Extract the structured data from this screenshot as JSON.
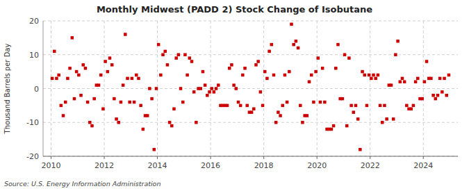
{
  "chart_data": {
    "type": "scatter",
    "title": "Monthly Midwest (PADD 2) Stock Change of Isobutane",
    "ylabel": "Thousand Barrels per Day",
    "annotation": "Source: U.S. Energy Information Administration",
    "color": "#cc0000",
    "marker": "square",
    "grid": true,
    "xlim": [
      2009.7,
      2025.3
    ],
    "xticks": [
      2010,
      2012,
      2014,
      2016,
      2018,
      2020,
      2022,
      2024
    ],
    "ylim": [
      -20,
      20
    ],
    "yticks": [
      -20,
      -10,
      0,
      10,
      20
    ],
    "x": [
      2010.0417,
      2010.125,
      2010.2083,
      2010.2917,
      2010.375,
      2010.4583,
      2010.5417,
      2010.625,
      2010.7083,
      2010.7917,
      2010.875,
      2010.9583,
      2011.0417,
      2011.125,
      2011.2083,
      2011.2917,
      2011.375,
      2011.4583,
      2011.5417,
      2011.625,
      2011.7083,
      2011.7917,
      2011.875,
      2011.9583,
      2012.0417,
      2012.125,
      2012.2083,
      2012.2917,
      2012.375,
      2012.4583,
      2012.5417,
      2012.625,
      2012.7083,
      2012.7917,
      2012.875,
      2012.9583,
      2013.0417,
      2013.125,
      2013.2083,
      2013.2917,
      2013.375,
      2013.4583,
      2013.5417,
      2013.625,
      2013.7083,
      2013.7917,
      2013.875,
      2013.9583,
      2014.0417,
      2014.125,
      2014.2083,
      2014.2917,
      2014.375,
      2014.4583,
      2014.5417,
      2014.625,
      2014.7083,
      2014.7917,
      2014.875,
      2014.9583,
      2015.0417,
      2015.125,
      2015.2083,
      2015.2917,
      2015.375,
      2015.4583,
      2015.5417,
      2015.625,
      2015.7083,
      2015.7917,
      2015.875,
      2015.9583,
      2016.0417,
      2016.125,
      2016.2083,
      2016.2917,
      2016.375,
      2016.4583,
      2016.5417,
      2016.625,
      2016.7083,
      2016.7917,
      2016.875,
      2016.9583,
      2017.0417,
      2017.125,
      2017.2083,
      2017.2917,
      2017.375,
      2017.4583,
      2017.5417,
      2017.625,
      2017.7083,
      2017.7917,
      2017.875,
      2017.9583,
      2018.0417,
      2018.125,
      2018.2083,
      2018.2917,
      2018.375,
      2018.4583,
      2018.5417,
      2018.625,
      2018.7083,
      2018.7917,
      2018.875,
      2018.9583,
      2019.0417,
      2019.125,
      2019.2083,
      2019.2917,
      2019.375,
      2019.4583,
      2019.5417,
      2019.625,
      2019.7083,
      2019.7917,
      2019.875,
      2019.9583,
      2020.0417,
      2020.125,
      2020.2083,
      2020.2917,
      2020.375,
      2020.4583,
      2020.5417,
      2020.625,
      2020.7083,
      2020.7917,
      2020.875,
      2020.9583,
      2021.0417,
      2021.125,
      2021.2083,
      2021.2917,
      2021.375,
      2021.4583,
      2021.5417,
      2021.625,
      2021.7083,
      2021.7917,
      2021.875,
      2021.9583,
      2022.0417,
      2022.125,
      2022.2083,
      2022.2917,
      2022.375,
      2022.4583,
      2022.5417,
      2022.625,
      2022.7083,
      2022.7917,
      2022.875,
      2022.9583,
      2023.0417,
      2023.125,
      2023.2083,
      2023.2917,
      2023.375,
      2023.4583,
      2023.5417,
      2023.625,
      2023.7083,
      2023.7917,
      2023.875,
      2023.9583,
      2024.0417,
      2024.125,
      2024.2083,
      2024.2917,
      2024.375,
      2024.4583,
      2024.5417,
      2024.625,
      2024.7083,
      2024.7917,
      2024.875,
      2024.9583
    ],
    "values": [
      3,
      11,
      3,
      4,
      -5,
      -8,
      -4,
      3,
      6,
      15,
      -3,
      5,
      4,
      -2,
      7,
      6,
      -4,
      -10,
      -11,
      -3,
      1,
      1,
      4,
      -6,
      8,
      5,
      9,
      7,
      -3,
      -9,
      -10,
      -4,
      1,
      16,
      3,
      -4,
      3,
      -4,
      4,
      3,
      -5,
      -12,
      -8,
      -8,
      0,
      -3,
      -18,
      0,
      13,
      4,
      10,
      11,
      7,
      -10,
      -11,
      -6,
      9,
      10,
      0,
      -4,
      10,
      4,
      9,
      8,
      -1,
      -10,
      0,
      0,
      5,
      1,
      -2,
      -1,
      0,
      -1,
      0,
      1,
      -5,
      -5,
      -5,
      -5,
      6,
      7,
      1,
      0,
      -4,
      -5,
      4,
      6,
      -5,
      -7,
      -7,
      -6,
      7,
      8,
      -1,
      -5,
      5,
      3,
      11,
      13,
      4,
      -10,
      -7,
      -8,
      -5,
      4,
      -4,
      5,
      19,
      13,
      14,
      12,
      -5,
      -10,
      -8,
      -8,
      2,
      4,
      -4,
      5,
      9,
      -4,
      6,
      -4,
      -12,
      -12,
      -12,
      -11,
      6,
      13,
      -3,
      -3,
      10,
      -11,
      9,
      -5,
      -7,
      -5,
      -9,
      -18,
      5,
      4,
      -5,
      4,
      3,
      4,
      3,
      4,
      -5,
      -10,
      -5,
      -9,
      1,
      1,
      -9,
      10,
      14,
      2,
      3,
      2,
      -5,
      -6,
      -6,
      -5,
      2,
      3,
      -3,
      -3,
      2,
      8,
      3,
      3,
      -2,
      -3,
      -2,
      3,
      -1,
      3,
      -2,
      4
    ]
  }
}
